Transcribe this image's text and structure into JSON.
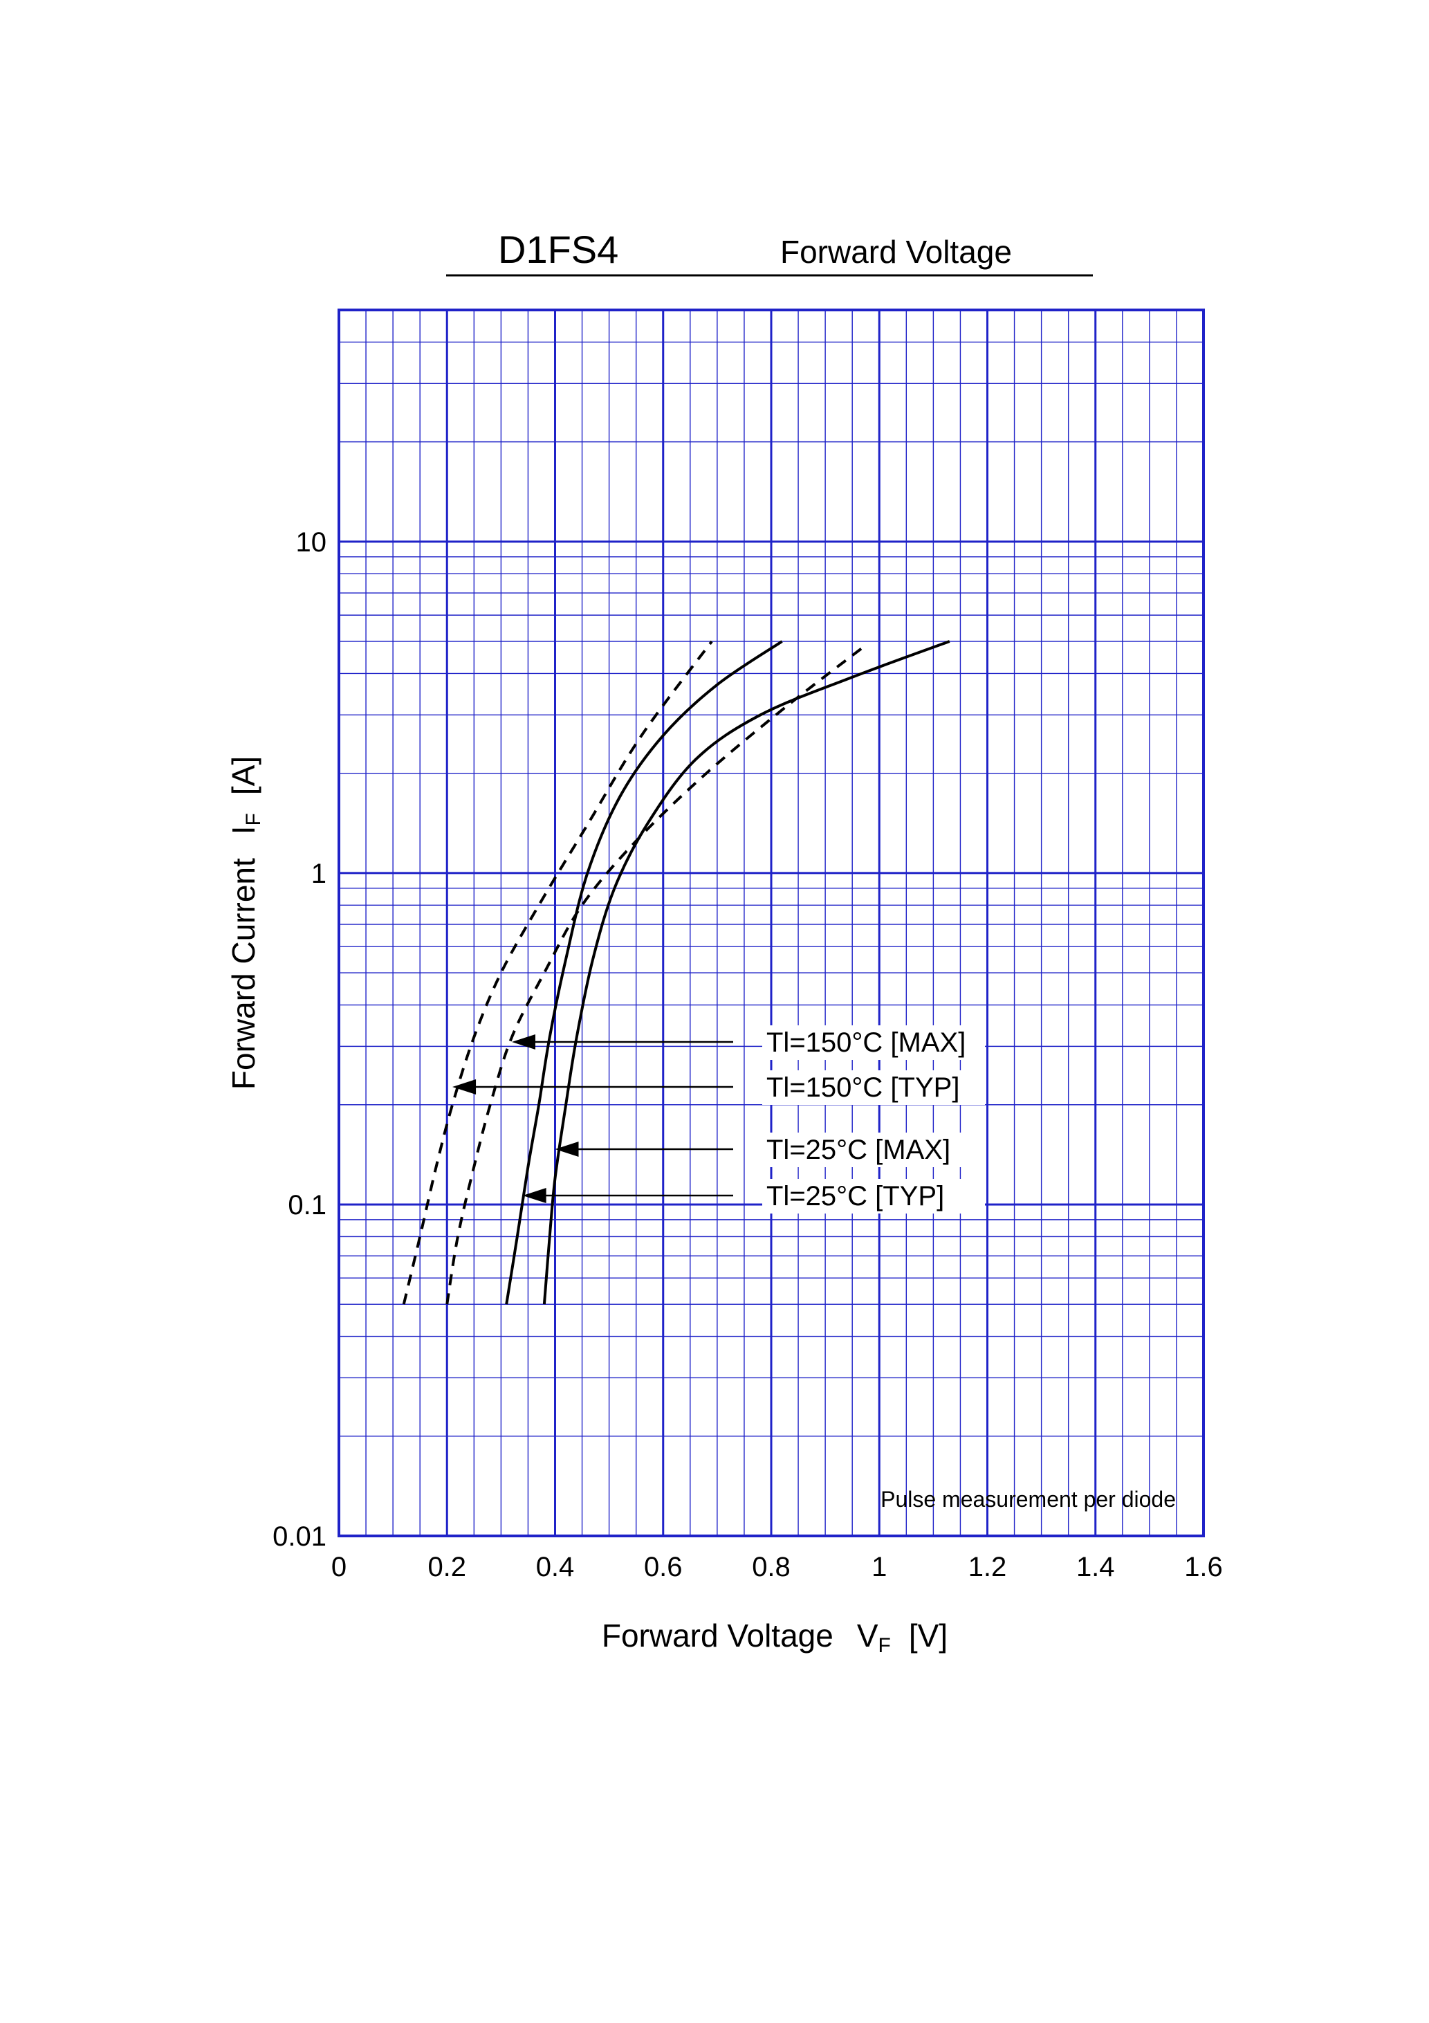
{
  "chart_data": {
    "type": "line",
    "title": "D1FS4",
    "subtitle": "Forward Voltage",
    "xlabel": "Forward Voltage",
    "xlabel_symbol": "V",
    "xlabel_subscript": "F",
    "xlabel_unit": "[V]",
    "ylabel": "Forward Current",
    "ylabel_symbol": "I",
    "ylabel_subscript": "F",
    "ylabel_unit": "[A]",
    "xlim": [
      0,
      1.6
    ],
    "ylim": [
      0.01,
      50
    ],
    "yscale": "log",
    "grid": true,
    "x_ticks": [
      "0",
      "0.2",
      "0.4",
      "0.6",
      "0.8",
      "1",
      "1.2",
      "1.4",
      "1.6"
    ],
    "y_ticks": [
      "0.01",
      "0.1",
      "1",
      "10"
    ],
    "annotation": "Pulse measurement per diode",
    "colors": {
      "grid": "#1f22c8",
      "curve": "#000000"
    },
    "series": [
      {
        "name": "Tl=150°C [MAX]",
        "style": "dashed",
        "arrow_x": 0.32,
        "x": [
          0.12,
          0.15,
          0.18,
          0.21,
          0.25,
          0.3,
          0.37,
          0.46,
          0.56,
          0.69
        ],
        "y": [
          0.05,
          0.08,
          0.13,
          0.2,
          0.32,
          0.5,
          0.8,
          1.4,
          2.6,
          5.0
        ]
      },
      {
        "name": "Tl=150°C [TYP]",
        "style": "dashed",
        "arrow_x": 0.21,
        "x": [
          0.2,
          0.22,
          0.25,
          0.28,
          0.32,
          0.38,
          0.45,
          0.55,
          0.68,
          0.83,
          0.97
        ],
        "y": [
          0.05,
          0.08,
          0.13,
          0.2,
          0.32,
          0.5,
          0.8,
          1.25,
          2.0,
          3.2,
          4.8
        ]
      },
      {
        "name": "Tl=25°C [MAX]",
        "style": "solid",
        "arrow_x": 0.4,
        "x": [
          0.31,
          0.33,
          0.35,
          0.37,
          0.39,
          0.42,
          0.46,
          0.52,
          0.6,
          0.7,
          0.82
        ],
        "y": [
          0.05,
          0.08,
          0.13,
          0.2,
          0.32,
          0.55,
          1.0,
          1.7,
          2.6,
          3.7,
          5.0
        ]
      },
      {
        "name": "Tl=25°C [TYP]",
        "style": "solid",
        "arrow_x": 0.34,
        "x": [
          0.38,
          0.39,
          0.4,
          0.42,
          0.44,
          0.47,
          0.51,
          0.57,
          0.66,
          0.78,
          0.95,
          1.13
        ],
        "y": [
          0.05,
          0.08,
          0.12,
          0.2,
          0.32,
          0.55,
          0.9,
          1.4,
          2.2,
          3.0,
          3.9,
          5.0
        ]
      }
    ]
  }
}
